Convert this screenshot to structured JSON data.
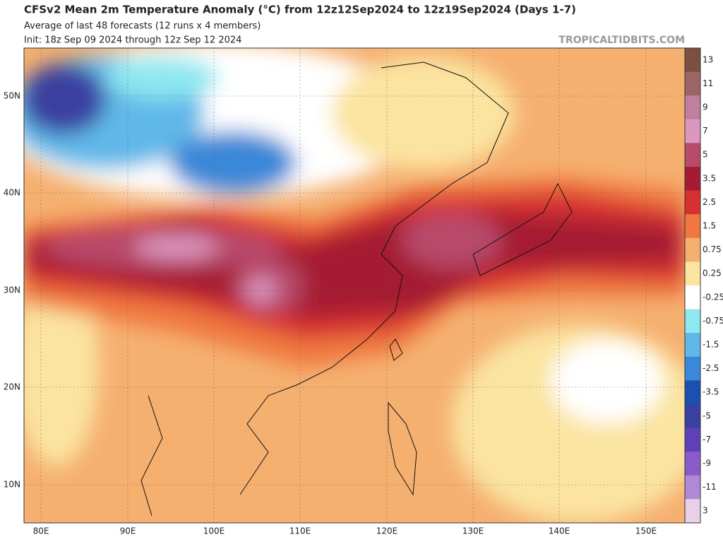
{
  "header": {
    "title": "CFSv2 Mean 2m Temperature Anomaly (°C) from 12z12Sep2024 to 12z19Sep2024 (Days 1-7)",
    "subtitle": "Average of last 48 forecasts (12 runs x 4 members)",
    "init": "Init: 18z Sep 09 2024 through 12z Sep 12 2024",
    "watermark": "TROPICALTIDBITS.COM"
  },
  "map": {
    "lat_labels": [
      "50N",
      "40N",
      "30N",
      "20N",
      "10N"
    ],
    "lon_labels": [
      "80E",
      "90E",
      "100E",
      "110E",
      "120E",
      "130E",
      "140E",
      "150E"
    ]
  },
  "colorbar": {
    "levels": [
      {
        "label": "13",
        "color": "#7b5040"
      },
      {
        "label": "11",
        "color": "#9c6466"
      },
      {
        "label": "9",
        "color": "#c07f9c"
      },
      {
        "label": "7",
        "color": "#dc97c0"
      },
      {
        "label": "5",
        "color": "#b84a6a"
      },
      {
        "label": "3.5",
        "color": "#a51c32"
      },
      {
        "label": "2.5",
        "color": "#d73030"
      },
      {
        "label": "1.5",
        "color": "#f07840"
      },
      {
        "label": "0.75",
        "color": "#f5b070"
      },
      {
        "label": "0.25",
        "color": "#fbe4a0"
      },
      {
        "label": "-0.25",
        "color": "#ffffff"
      },
      {
        "label": "-0.75",
        "color": "#8ee8f0"
      },
      {
        "label": "-1.5",
        "color": "#60b8e8"
      },
      {
        "label": "-2.5",
        "color": "#3a88d8"
      },
      {
        "label": "-3.5",
        "color": "#1c50b0"
      },
      {
        "label": "-5",
        "color": "#3a40a0"
      },
      {
        "label": "-7",
        "color": "#6040b8"
      },
      {
        "label": "-9",
        "color": "#8a5ac8"
      },
      {
        "label": "-11",
        "color": "#b088d8"
      },
      {
        "label": "3",
        "color": "#e8d0e8"
      }
    ]
  }
}
